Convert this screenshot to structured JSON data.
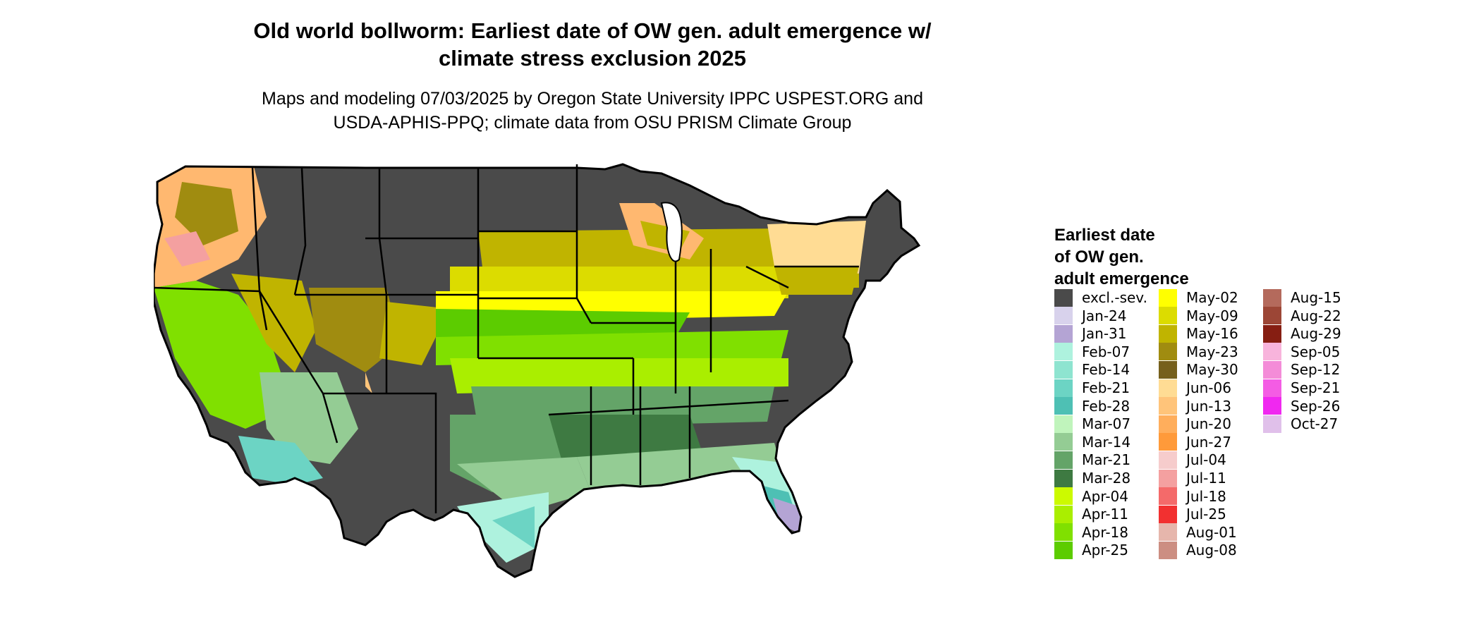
{
  "title": {
    "line1": "Old world bollworm: Earliest date of OW gen. adult emergence w/",
    "line2": "climate stress exclusion 2025"
  },
  "subtitle": {
    "line1": "Maps and modeling 07/03/2025 by Oregon State University IPPC USPEST.ORG and",
    "line2": "USDA-APHIS-PPQ; climate data from OSU PRISM Climate Group"
  },
  "legend": {
    "title_line1": "Earliest date",
    "title_line2": "of OW gen.",
    "title_line3": "adult emergence",
    "items": [
      {
        "label": "excl.-sev.",
        "color": "#4a4a4a"
      },
      {
        "label": "Jan-24",
        "color": "#d8d2ec"
      },
      {
        "label": "Jan-31",
        "color": "#b4a4d4"
      },
      {
        "label": "Feb-07",
        "color": "#aef2de"
      },
      {
        "label": "Feb-14",
        "color": "#8ee4d0"
      },
      {
        "label": "Feb-21",
        "color": "#6cd4c4"
      },
      {
        "label": "Feb-28",
        "color": "#4ec0b4"
      },
      {
        "label": "Mar-07",
        "color": "#c0f4bc"
      },
      {
        "label": "Mar-14",
        "color": "#94cc94"
      },
      {
        "label": "Mar-21",
        "color": "#64a468"
      },
      {
        "label": "Mar-28",
        "color": "#3e7a42"
      },
      {
        "label": "Apr-04",
        "color": "#ccfa00"
      },
      {
        "label": "Apr-11",
        "color": "#aaee00"
      },
      {
        "label": "Apr-18",
        "color": "#80e000"
      },
      {
        "label": "Apr-25",
        "color": "#5ccc00"
      },
      {
        "label": "May-02",
        "color": "#ffff00"
      },
      {
        "label": "May-09",
        "color": "#dcdc00"
      },
      {
        "label": "May-16",
        "color": "#c0b400"
      },
      {
        "label": "May-23",
        "color": "#a08c10"
      },
      {
        "label": "May-30",
        "color": "#76601c"
      },
      {
        "label": "Jun-06",
        "color": "#ffdc94"
      },
      {
        "label": "Jun-13",
        "color": "#ffc47a"
      },
      {
        "label": "Jun-20",
        "color": "#ffae5c"
      },
      {
        "label": "Jun-27",
        "color": "#ff9a3a"
      },
      {
        "label": "Jul-04",
        "color": "#f6cccc"
      },
      {
        "label": "Jul-11",
        "color": "#f4a0a0"
      },
      {
        "label": "Jul-18",
        "color": "#f46a6a"
      },
      {
        "label": "Jul-25",
        "color": "#f23030"
      },
      {
        "label": "Aug-01",
        "color": "#e6b6ac"
      },
      {
        "label": "Aug-08",
        "color": "#cc8e82"
      },
      {
        "label": "Aug-15",
        "color": "#b46a5c"
      },
      {
        "label": "Aug-22",
        "color": "#9c4636"
      },
      {
        "label": "Aug-29",
        "color": "#861e12"
      },
      {
        "label": "Sep-05",
        "color": "#f8b4dc"
      },
      {
        "label": "Sep-12",
        "color": "#f48cd8"
      },
      {
        "label": "Sep-21",
        "color": "#f45ce4"
      },
      {
        "label": "Sep-26",
        "color": "#f028f0"
      },
      {
        "label": "Oct-27",
        "color": "#e0c0ea"
      }
    ]
  }
}
